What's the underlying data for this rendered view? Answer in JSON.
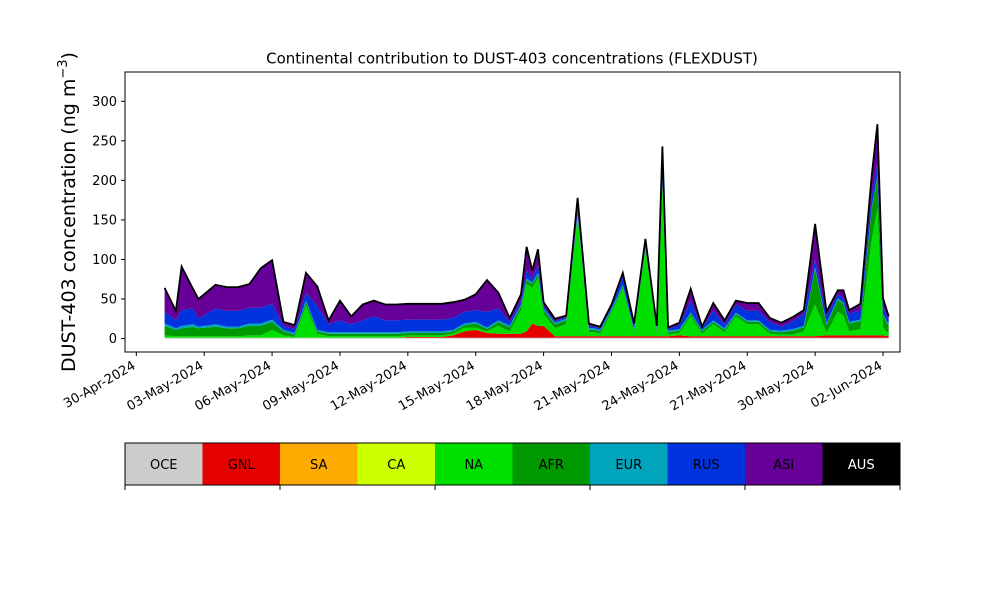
{
  "chart_data": {
    "type": "area",
    "stacked": true,
    "title": "Continental contribution to DUST-403 concentrations (FLEXDUST)",
    "ylabel": "DUST-403 concentration (ng m⁻³)",
    "ylabel_main": "DUST-403 concentration (ng m",
    "ylabel_sup": "−3",
    "ylabel_close": ")",
    "ylim": [
      -17,
      337
    ],
    "yticks": [
      0,
      50,
      100,
      150,
      200,
      250,
      300
    ],
    "xlim": [
      "2024-04-29T12:00",
      "2024-06-02T18:00"
    ],
    "xticks": [
      "2024-04-30",
      "2024-05-03",
      "2024-05-06",
      "2024-05-09",
      "2024-05-12",
      "2024-05-15",
      "2024-05-18",
      "2024-05-21",
      "2024-05-24",
      "2024-05-27",
      "2024-05-30",
      "2024-06-02"
    ],
    "xtick_labels": [
      "30-Apr-2024",
      "03-May-2024",
      "06-May-2024",
      "09-May-2024",
      "12-May-2024",
      "15-May-2024",
      "18-May-2024",
      "21-May-2024",
      "24-May-2024",
      "27-May-2024",
      "30-May-2024",
      "02-Jun-2024"
    ],
    "x": [
      "2024-05-01T06:00",
      "2024-05-01T18:00",
      "2024-05-02T00:00",
      "2024-05-02T12:00",
      "2024-05-02T18:00",
      "2024-05-03T12:00",
      "2024-05-04T00:00",
      "2024-05-04T12:00",
      "2024-05-05T00:00",
      "2024-05-05T12:00",
      "2024-05-06T00:00",
      "2024-05-06T12:00",
      "2024-05-07T00:00",
      "2024-05-07T12:00",
      "2024-05-08T00:00",
      "2024-05-08T12:00",
      "2024-05-09T00:00",
      "2024-05-09T12:00",
      "2024-05-10T00:00",
      "2024-05-10T12:00",
      "2024-05-11T00:00",
      "2024-05-11T12:00",
      "2024-05-12T00:00",
      "2024-05-12T12:00",
      "2024-05-13T00:00",
      "2024-05-13T12:00",
      "2024-05-14T00:00",
      "2024-05-14T12:00",
      "2024-05-15T00:00",
      "2024-05-15T12:00",
      "2024-05-16T00:00",
      "2024-05-16T12:00",
      "2024-05-17T00:00",
      "2024-05-17T06:00",
      "2024-05-17T12:00",
      "2024-05-17T18:00",
      "2024-05-18T00:00",
      "2024-05-18T12:00",
      "2024-05-19T00:00",
      "2024-05-19T12:00",
      "2024-05-20T00:00",
      "2024-05-20T06:00",
      "2024-05-20T12:00",
      "2024-05-21T00:00",
      "2024-05-21T12:00",
      "2024-05-22T00:00",
      "2024-05-22T12:00",
      "2024-05-23T00:00",
      "2024-05-23T06:00",
      "2024-05-23T12:00",
      "2024-05-24T00:00",
      "2024-05-24T12:00",
      "2024-05-25T00:00",
      "2024-05-25T12:00",
      "2024-05-26T00:00",
      "2024-05-26T12:00",
      "2024-05-27T00:00",
      "2024-05-27T12:00",
      "2024-05-28T00:00",
      "2024-05-28T12:00",
      "2024-05-29T00:00",
      "2024-05-29T12:00",
      "2024-05-30T00:00",
      "2024-05-30T12:00",
      "2024-05-31T00:00",
      "2024-05-31T06:00",
      "2024-05-31T12:00",
      "2024-06-01T00:00",
      "2024-06-01T12:00",
      "2024-06-01T18:00",
      "2024-06-02T00:00",
      "2024-06-02T06:00"
    ],
    "series": [
      {
        "name": "OCE",
        "color": "#cccccc",
        "values": [
          1,
          1,
          1,
          1,
          1,
          1,
          1,
          1,
          1,
          1,
          1,
          1,
          1,
          1,
          1,
          1,
          1,
          1,
          1,
          1,
          1,
          1,
          1,
          1,
          1,
          1,
          1,
          1,
          1,
          1,
          1,
          1,
          1,
          1,
          1,
          1,
          1,
          1,
          1,
          1,
          1,
          1,
          1,
          1,
          1,
          1,
          1,
          1,
          1,
          1,
          1,
          1,
          1,
          1,
          1,
          1,
          1,
          1,
          1,
          1,
          1,
          1,
          1,
          1,
          1,
          1,
          1,
          1,
          1,
          1,
          1,
          1
        ]
      },
      {
        "name": "GNL",
        "color": "#e60000",
        "values": [
          0,
          0,
          0,
          0,
          0,
          0,
          0,
          0,
          0,
          0,
          0,
          0,
          0,
          0,
          0,
          0,
          0,
          0,
          0,
          0,
          0,
          0,
          1,
          1,
          1,
          1,
          3,
          8,
          10,
          6,
          5,
          5,
          5,
          8,
          18,
          15,
          15,
          2,
          2,
          2,
          2,
          2,
          2,
          2,
          2,
          2,
          2,
          2,
          2,
          2,
          3,
          2,
          2,
          2,
          2,
          2,
          2,
          2,
          2,
          2,
          2,
          2,
          2,
          3,
          3,
          3,
          3,
          3,
          3,
          3,
          3,
          2
        ]
      },
      {
        "name": "SA",
        "color": "#ffaa00",
        "values": [
          0,
          0,
          0,
          0,
          0,
          0,
          0,
          0,
          0,
          0,
          0,
          0,
          0,
          0,
          0,
          0,
          0,
          0,
          0,
          0,
          0,
          0,
          0,
          0,
          0,
          0,
          0,
          0,
          0,
          0,
          0,
          0,
          0,
          0,
          0,
          0,
          0,
          0,
          0,
          0,
          0,
          0,
          0,
          0,
          0,
          0,
          0,
          0,
          0,
          0,
          0,
          0,
          0,
          0,
          0,
          0,
          0,
          0,
          0,
          0,
          0,
          0,
          0,
          0,
          0,
          0,
          0,
          0,
          0,
          0,
          0,
          0
        ]
      },
      {
        "name": "CA",
        "color": "#ccff00",
        "values": [
          0,
          0,
          0,
          0,
          0,
          0,
          0,
          0,
          0,
          0,
          0,
          0,
          0,
          0,
          0,
          0,
          0,
          0,
          0,
          0,
          0,
          0,
          0,
          0,
          0,
          0,
          0,
          0,
          0,
          0,
          0,
          0,
          0,
          0,
          0,
          0,
          0,
          0,
          0,
          0,
          0,
          0,
          0,
          0,
          0,
          0,
          0,
          0,
          0,
          0,
          0,
          0,
          0,
          0,
          0,
          0,
          0,
          0,
          0,
          0,
          0,
          0,
          0,
          0,
          0,
          0,
          0,
          0,
          0,
          0,
          0,
          0
        ]
      },
      {
        "name": "NA",
        "color": "#00e000",
        "values": [
          3,
          2,
          2,
          2,
          2,
          2,
          2,
          2,
          3,
          3,
          10,
          3,
          1,
          40,
          5,
          2,
          2,
          2,
          2,
          2,
          2,
          2,
          2,
          2,
          2,
          2,
          2,
          5,
          3,
          2,
          10,
          3,
          30,
          60,
          45,
          60,
          15,
          10,
          15,
          150,
          5,
          5,
          3,
          30,
          60,
          4,
          110,
          4,
          190,
          2,
          3,
          25,
          3,
          15,
          5,
          25,
          15,
          15,
          3,
          2,
          2,
          6,
          40,
          3,
          30,
          25,
          5,
          8,
          120,
          160,
          10,
          3
        ]
      },
      {
        "name": "AFR",
        "color": "#009900",
        "values": [
          12,
          8,
          10,
          12,
          10,
          12,
          10,
          10,
          12,
          12,
          10,
          5,
          3,
          5,
          3,
          3,
          3,
          3,
          3,
          3,
          3,
          3,
          3,
          3,
          3,
          3,
          3,
          3,
          5,
          3,
          5,
          5,
          5,
          5,
          5,
          5,
          5,
          5,
          5,
          3,
          3,
          3,
          3,
          3,
          3,
          3,
          3,
          3,
          3,
          3,
          3,
          3,
          3,
          3,
          3,
          3,
          3,
          3,
          3,
          3,
          5,
          5,
          45,
          10,
          15,
          15,
          10,
          10,
          40,
          40,
          15,
          10
        ]
      },
      {
        "name": "EUR",
        "color": "#00a5bd",
        "values": [
          3,
          2,
          3,
          3,
          2,
          3,
          2,
          2,
          3,
          3,
          3,
          2,
          2,
          2,
          2,
          2,
          2,
          2,
          2,
          2,
          2,
          2,
          2,
          2,
          2,
          2,
          2,
          2,
          2,
          2,
          2,
          2,
          2,
          2,
          2,
          2,
          2,
          2,
          2,
          2,
          2,
          2,
          2,
          2,
          2,
          2,
          2,
          2,
          2,
          2,
          2,
          2,
          2,
          2,
          2,
          2,
          2,
          2,
          2,
          2,
          2,
          2,
          2,
          2,
          2,
          2,
          2,
          2,
          2,
          2,
          2,
          2
        ]
      },
      {
        "name": "RUS",
        "color": "#0033dd",
        "values": [
          15,
          10,
          20,
          20,
          10,
          20,
          20,
          20,
          20,
          20,
          20,
          5,
          5,
          10,
          30,
          10,
          15,
          10,
          15,
          20,
          15,
          15,
          15,
          15,
          15,
          15,
          15,
          15,
          15,
          20,
          15,
          5,
          5,
          10,
          5,
          10,
          3,
          2,
          2,
          5,
          3,
          2,
          2,
          3,
          10,
          5,
          5,
          2,
          20,
          2,
          5,
          15,
          2,
          12,
          5,
          10,
          12,
          12,
          10,
          5,
          10,
          15,
          10,
          10,
          5,
          5,
          10,
          12,
          15,
          15,
          10,
          5
        ]
      },
      {
        "name": "ASI",
        "color": "#660099",
        "values": [
          30,
          12,
          55,
          25,
          25,
          30,
          30,
          30,
          30,
          50,
          55,
          5,
          5,
          25,
          25,
          5,
          25,
          10,
          20,
          20,
          20,
          20,
          20,
          20,
          20,
          20,
          20,
          15,
          20,
          40,
          20,
          5,
          8,
          30,
          10,
          20,
          5,
          3,
          2,
          15,
          3,
          2,
          2,
          2,
          5,
          2,
          3,
          2,
          25,
          2,
          3,
          15,
          2,
          10,
          5,
          5,
          10,
          10,
          5,
          5,
          5,
          5,
          45,
          5,
          5,
          10,
          5,
          8,
          25,
          50,
          10,
          5
        ]
      },
      {
        "name": "AUS",
        "color": "#000000",
        "values": [
          0,
          0,
          0,
          0,
          0,
          0,
          0,
          0,
          0,
          0,
          0,
          0,
          0,
          0,
          0,
          0,
          0,
          0,
          0,
          0,
          0,
          0,
          0,
          0,
          0,
          0,
          0,
          0,
          0,
          0,
          0,
          0,
          0,
          0,
          0,
          0,
          0,
          0,
          0,
          0,
          0,
          0,
          0,
          0,
          0,
          0,
          0,
          0,
          0,
          0,
          0,
          0,
          0,
          0,
          0,
          0,
          0,
          0,
          0,
          0,
          0,
          0,
          0,
          0,
          0,
          0,
          0,
          0,
          0,
          0,
          0,
          0
        ]
      }
    ],
    "legend": {
      "placement": "bottom",
      "labels": [
        "OCE",
        "GNL",
        "SA",
        "CA",
        "NA",
        "AFR",
        "EUR",
        "RUS",
        "ASI",
        "AUS"
      ],
      "colors": [
        "#cccccc",
        "#e60000",
        "#ffaa00",
        "#ccff00",
        "#00e000",
        "#009900",
        "#00a5bd",
        "#0033dd",
        "#660099",
        "#000000"
      ],
      "label_colors": [
        "#000000",
        "#000000",
        "#000000",
        "#000000",
        "#000000",
        "#000000",
        "#000000",
        "#000000",
        "#000000",
        "#ffffff"
      ]
    }
  }
}
